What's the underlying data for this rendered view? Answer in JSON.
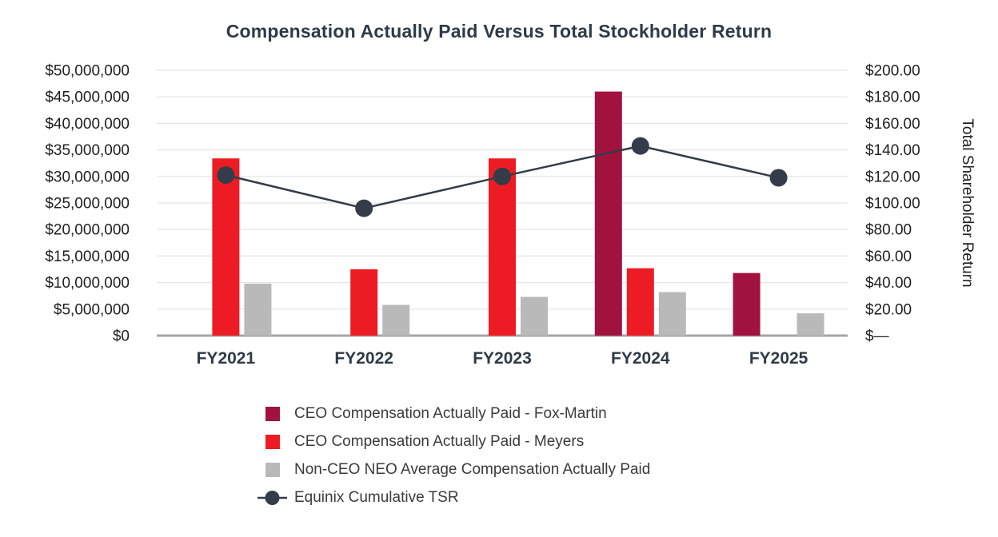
{
  "page": {
    "background": "#ffffff"
  },
  "chart_data": {
    "type": "combo-bar-line",
    "title": "Compensation Actually Paid Versus Total Stockholder Return",
    "categories": [
      "FY2021",
      "FY2022",
      "FY2023",
      "FY2024",
      "FY2025"
    ],
    "bar_series": [
      {
        "name": "CEO Compensation Actually Paid - Fox-Martin",
        "color": "#A2123E",
        "axis": "left",
        "values": [
          null,
          null,
          null,
          46000000,
          11800000
        ]
      },
      {
        "name": "CEO Compensation Actually Paid - Meyers",
        "color": "#ED1C24",
        "axis": "left",
        "values": [
          33400000,
          12500000,
          33400000,
          12700000,
          null
        ]
      },
      {
        "name": "Non-CEO NEO Average Compensation Actually Paid",
        "color": "#B9B9B9",
        "axis": "left",
        "values": [
          9800000,
          5800000,
          7300000,
          8200000,
          4200000
        ]
      }
    ],
    "line_series": [
      {
        "name": "Equinix Cumulative TSR",
        "color": "#333C48",
        "marker": "circle",
        "axis": "right",
        "values": [
          121,
          96,
          120,
          143,
          119
        ]
      }
    ],
    "left_axis": {
      "min": 0,
      "max": 50000000,
      "step": 5000000,
      "tick_labels": [
        "$0",
        "$5,000,000",
        "$10,000,000",
        "$15,000,000",
        "$20,000,000",
        "$25,000,000",
        "$30,000,000",
        "$35,000,000",
        "$40,000,000",
        "$45,000,000",
        "$50,000,000"
      ]
    },
    "right_axis": {
      "min": 0,
      "max": 200,
      "step": 20,
      "title": "Total Shareholder Return",
      "tick_labels": [
        "$—",
        "$20.00",
        "$40.00",
        "$60.00",
        "$80.00",
        "$100.00",
        "$120.00",
        "$140.00",
        "$160.00",
        "$180.00",
        "$200.00"
      ]
    },
    "grid": true,
    "legend_position": "bottom"
  },
  "colors": {
    "title_text": "#2E3A47",
    "axis_tick_text": "#1F1F1F",
    "x_label_text": "#2E3A47",
    "legend_text": "#3B3B3B",
    "gridline": "#E4E4E4",
    "axis_line": "#A6A6A6"
  }
}
